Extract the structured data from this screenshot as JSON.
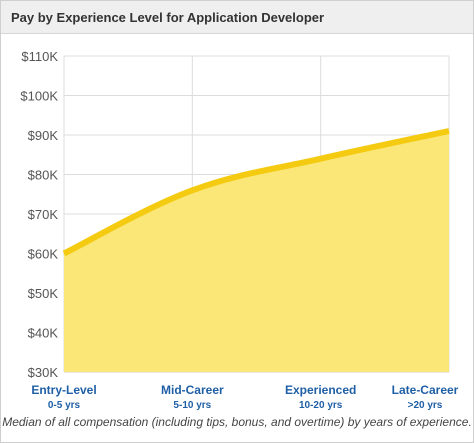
{
  "header": {
    "title": "Pay by Experience Level for Application Developer"
  },
  "caption": "Median of all compensation (including tips, bonus, and overtime) by years of experience.",
  "colors": {
    "line": "#f5cb12",
    "fill": "#fae777",
    "grid": "#dcdcdc",
    "axis_text": "#555555",
    "category_text": "#1f5fa6"
  },
  "chart_data": {
    "type": "area",
    "title": "Pay by Experience Level for Application Developer",
    "xlabel": "",
    "ylabel": "",
    "categories": [
      "Entry-Level",
      "Mid-Career",
      "Experienced",
      "Late-Career"
    ],
    "category_sublabels": [
      "0-5 yrs",
      "5-10 yrs",
      "10-20 yrs",
      ">20 yrs"
    ],
    "values": [
      60000,
      76000,
      84000,
      91000
    ],
    "ylim": [
      30000,
      110000
    ],
    "yticks": [
      30000,
      40000,
      50000,
      60000,
      70000,
      80000,
      90000,
      100000,
      110000
    ],
    "ytick_labels": [
      "$30K",
      "$40K",
      "$50K",
      "$60K",
      "$70K",
      "$80K",
      "$90K",
      "$100K",
      "$110K"
    ],
    "grid": true,
    "legend": "none"
  }
}
